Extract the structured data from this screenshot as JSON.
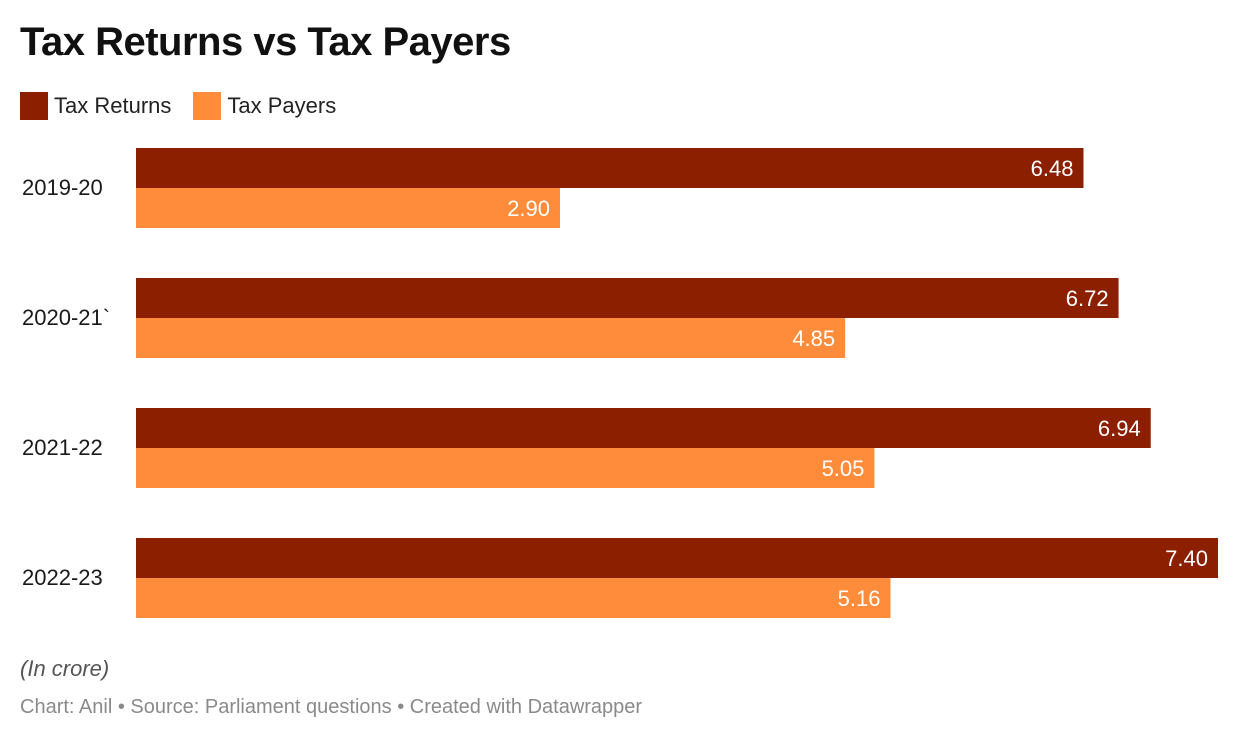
{
  "header": {
    "title": "Tax Returns vs Tax Payers"
  },
  "legend": {
    "items": [
      {
        "label": "Tax Returns",
        "color": "#8B1F00"
      },
      {
        "label": "Tax Payers",
        "color": "#FF8C3B"
      }
    ]
  },
  "chart_data": {
    "type": "bar",
    "orientation": "horizontal",
    "title": "Tax Returns vs Tax Payers",
    "categories": [
      "2019-20",
      "2020-21`",
      "2021-22",
      "2022-23"
    ],
    "series": [
      {
        "name": "Tax Returns",
        "color": "#8B1F00",
        "values": [
          6.48,
          6.72,
          6.94,
          7.4
        ],
        "labels": [
          "6.48",
          "6.72",
          "6.94",
          "7.40"
        ]
      },
      {
        "name": "Tax Payers",
        "color": "#FF8C3B",
        "values": [
          2.9,
          4.85,
          5.05,
          5.16
        ],
        "labels": [
          "2.90",
          "4.85",
          "5.05",
          "5.16"
        ]
      }
    ],
    "xlim": [
      0,
      7.4
    ],
    "xlabel": "",
    "ylabel": "",
    "grid": false,
    "legend_position": "top-left"
  },
  "notes": {
    "unit": "(In crore)",
    "source_line": "Chart: Anil • Source: Parliament questions • Created with Datawrapper"
  }
}
